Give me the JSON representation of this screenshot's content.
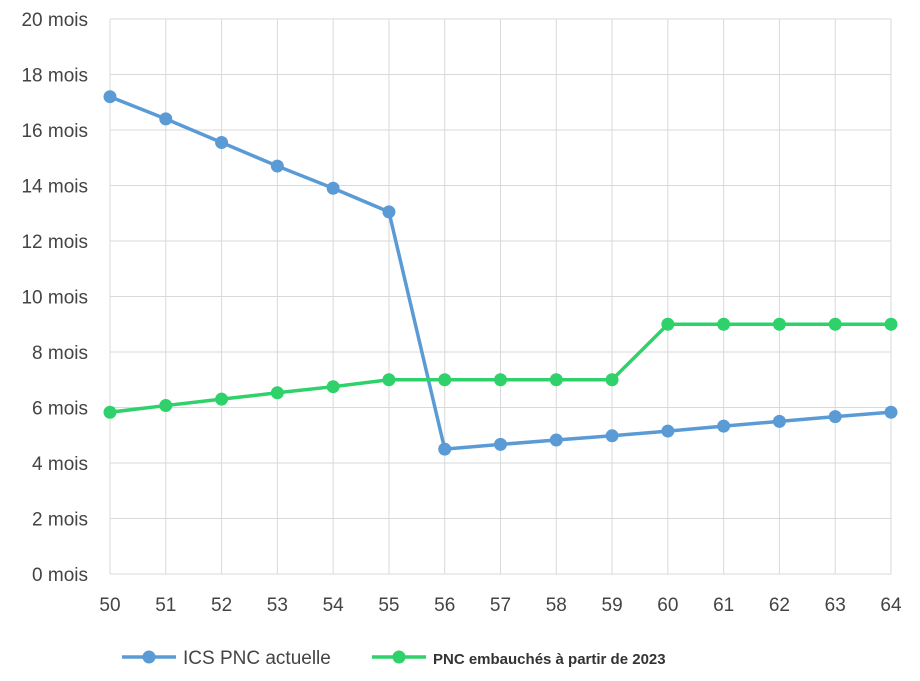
{
  "chart_data": {
    "type": "line",
    "title": "",
    "xlabel": "",
    "ylabel": "",
    "x": [
      50,
      51,
      52,
      53,
      54,
      55,
      56,
      57,
      58,
      59,
      60,
      61,
      62,
      63,
      64
    ],
    "y_ticks": [
      "0 mois",
      "2 mois",
      "4 mois",
      "6 mois",
      "8 mois",
      "10 mois",
      "12 mois",
      "14 mois",
      "16 mois",
      "18 mois",
      "20 mois"
    ],
    "ylim": [
      0,
      20
    ],
    "grid": true,
    "legend_position": "bottom",
    "series": [
      {
        "name": "ICS PNC actuelle",
        "color": "#5b9bd5",
        "values": [
          17.2,
          16.4,
          15.55,
          14.7,
          13.9,
          13.05,
          4.5,
          4.67,
          4.83,
          4.98,
          5.15,
          5.33,
          5.5,
          5.67,
          5.83
        ]
      },
      {
        "name": "PNC embauchés à partir de 2023",
        "color": "#2ed16a",
        "values": [
          5.83,
          6.07,
          6.3,
          6.53,
          6.75,
          7,
          7,
          7,
          7,
          7,
          9,
          9,
          9,
          9,
          9
        ]
      }
    ]
  }
}
